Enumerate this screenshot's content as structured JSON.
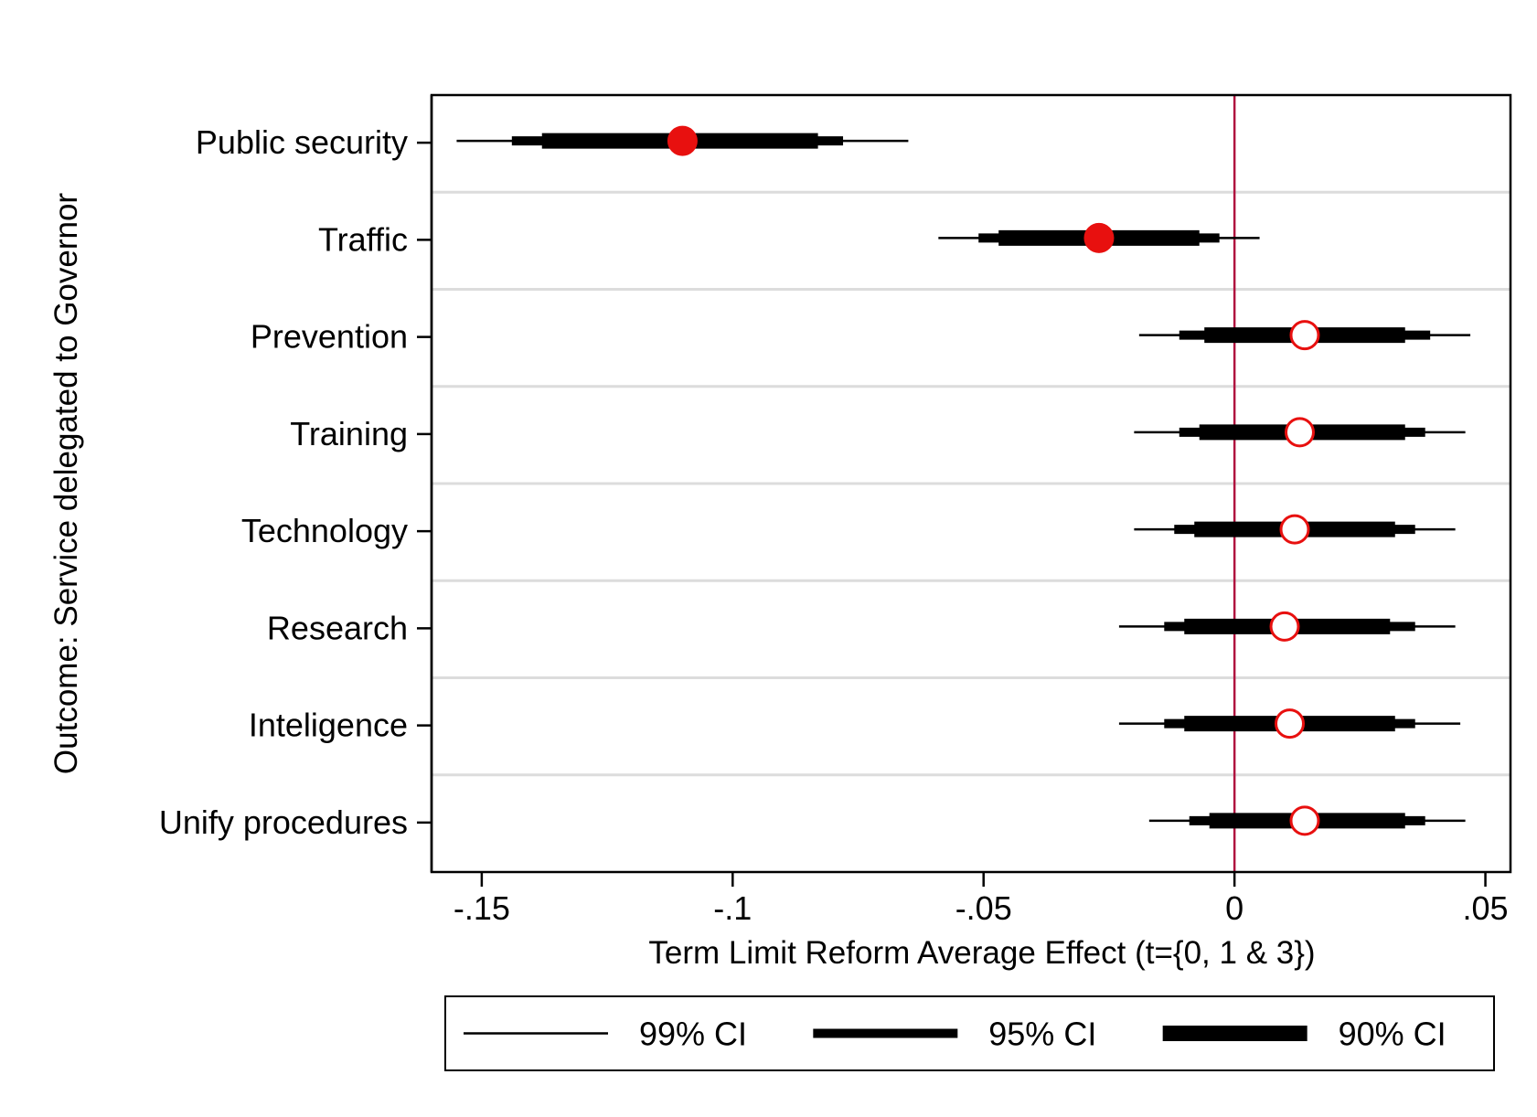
{
  "chart_data": {
    "type": "coefficient-plot",
    "xlabel": "Term Limit Reform Average Effect (t={0, 1 & 3})",
    "ylabel": "Outcome: Service delegated to Governor",
    "xlim": [
      -0.16,
      0.055
    ],
    "xticks": [
      {
        "value": -0.15,
        "label": "-.15"
      },
      {
        "value": -0.1,
        "label": "-.1"
      },
      {
        "value": -0.05,
        "label": "-.05"
      },
      {
        "value": 0,
        "label": "0"
      },
      {
        "value": 0.05,
        "label": ".05"
      }
    ],
    "reference_line": {
      "x": 0,
      "color": "#b0133f"
    },
    "colors": {
      "significant": "#e8100f",
      "marker_outline": "#e8100f",
      "ci": "#000000",
      "row_separator": "#dcdcdc"
    },
    "rows": [
      {
        "label": "Public security",
        "estimate": -0.11,
        "ci99": [
          -0.155,
          -0.065
        ],
        "ci95": [
          -0.144,
          -0.078
        ],
        "ci90": [
          -0.138,
          -0.083
        ],
        "significant": true
      },
      {
        "label": "Traffic",
        "estimate": -0.027,
        "ci99": [
          -0.059,
          0.005
        ],
        "ci95": [
          -0.051,
          -0.003
        ],
        "ci90": [
          -0.047,
          -0.007
        ],
        "significant": true
      },
      {
        "label": "Prevention",
        "estimate": 0.014,
        "ci99": [
          -0.019,
          0.047
        ],
        "ci95": [
          -0.011,
          0.039
        ],
        "ci90": [
          -0.006,
          0.034
        ],
        "significant": false
      },
      {
        "label": "Training",
        "estimate": 0.013,
        "ci99": [
          -0.02,
          0.046
        ],
        "ci95": [
          -0.011,
          0.038
        ],
        "ci90": [
          -0.007,
          0.034
        ],
        "significant": false
      },
      {
        "label": "Technology",
        "estimate": 0.012,
        "ci99": [
          -0.02,
          0.044
        ],
        "ci95": [
          -0.012,
          0.036
        ],
        "ci90": [
          -0.008,
          0.032
        ],
        "significant": false
      },
      {
        "label": "Research",
        "estimate": 0.01,
        "ci99": [
          -0.023,
          0.044
        ],
        "ci95": [
          -0.014,
          0.036
        ],
        "ci90": [
          -0.01,
          0.031
        ],
        "significant": false
      },
      {
        "label": "Inteligence",
        "estimate": 0.011,
        "ci99": [
          -0.023,
          0.045
        ],
        "ci95": [
          -0.014,
          0.036
        ],
        "ci90": [
          -0.01,
          0.032
        ],
        "significant": false
      },
      {
        "label": "Unify procedures",
        "estimate": 0.014,
        "ci99": [
          -0.017,
          0.046
        ],
        "ci95": [
          -0.009,
          0.038
        ],
        "ci90": [
          -0.005,
          0.034
        ],
        "significant": false
      }
    ],
    "legend": {
      "position": "bottom",
      "entries": [
        {
          "label": "99% CI",
          "style": "thin"
        },
        {
          "label": "95% CI",
          "style": "medium"
        },
        {
          "label": "90% CI",
          "style": "thick"
        }
      ]
    }
  }
}
